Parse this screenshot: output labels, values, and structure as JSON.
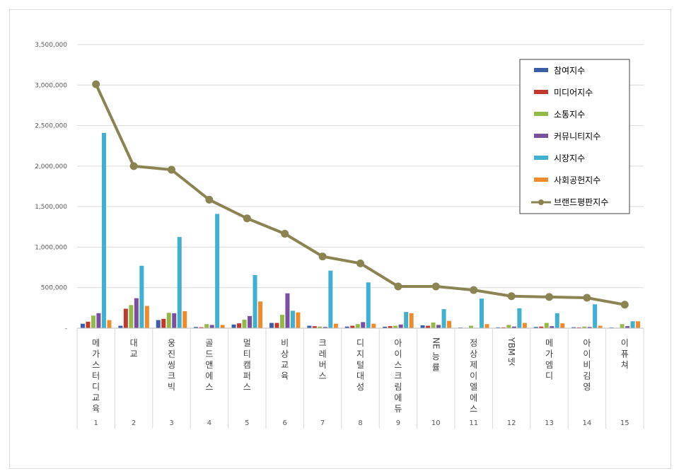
{
  "chart_data": {
    "type": "bar",
    "ylim": [
      0,
      3500000
    ],
    "yticks": [
      "3,500,000",
      "3,000,000",
      "2,500,000",
      "2,000,000",
      "1,500,000",
      "1,000,000",
      "500,000",
      "-"
    ],
    "ytick_values": [
      3500000,
      3000000,
      2500000,
      2000000,
      1500000,
      1000000,
      500000,
      0
    ],
    "grid": true,
    "legend_position": "top-right",
    "index_labels": [
      "1",
      "2",
      "3",
      "4",
      "5",
      "6",
      "7",
      "8",
      "9",
      "10",
      "11",
      "12",
      "13",
      "14",
      "15"
    ],
    "categories": [
      "메가스터디교육",
      "대교",
      "웅진씽크빅",
      "골드앤에스",
      "멀티캠퍼스",
      "비상교육",
      "크레버스",
      "디지털대성",
      "아이스크림에듀",
      "NE능률",
      "정상제이엘에스",
      "YBM넷",
      "메가엠디",
      "아이비김영",
      "이퓨쳐"
    ],
    "series": [
      {
        "name": "참여지수",
        "kind": "bar",
        "color": "#3a5fa8",
        "values": [
          55000,
          30000,
          100000,
          15000,
          45000,
          65000,
          30000,
          20000,
          18000,
          35000,
          8000,
          10000,
          15000,
          12000,
          8000
        ]
      },
      {
        "name": "미디어지수",
        "kind": "bar",
        "color": "#c0392b",
        "values": [
          80000,
          240000,
          115000,
          12000,
          60000,
          65000,
          25000,
          30000,
          25000,
          30000,
          5000,
          10000,
          20000,
          10000,
          5000
        ]
      },
      {
        "name": "소통지수",
        "kind": "bar",
        "color": "#93b949",
        "values": [
          155000,
          285000,
          190000,
          50000,
          105000,
          165000,
          20000,
          50000,
          30000,
          70000,
          30000,
          40000,
          65000,
          20000,
          50000
        ]
      },
      {
        "name": "커뮤니티지수",
        "kind": "bar",
        "color": "#7a4fa0",
        "values": [
          185000,
          370000,
          185000,
          40000,
          150000,
          430000,
          15000,
          75000,
          45000,
          40000,
          5000,
          20000,
          25000,
          15000,
          25000
        ]
      },
      {
        "name": "시장지수",
        "kind": "bar",
        "color": "#3fb0cf",
        "values": [
          2410000,
          770000,
          1125000,
          1410000,
          655000,
          215000,
          710000,
          565000,
          200000,
          235000,
          365000,
          245000,
          185000,
          295000,
          85000
        ]
      },
      {
        "name": "사회공헌지수",
        "kind": "bar",
        "color": "#f08b2c",
        "values": [
          100000,
          275000,
          210000,
          40000,
          330000,
          195000,
          55000,
          55000,
          185000,
          90000,
          50000,
          65000,
          60000,
          30000,
          85000
        ]
      },
      {
        "name": "브랜드평판지수",
        "kind": "line",
        "color": "#8b8452",
        "values": [
          3010000,
          2000000,
          1955000,
          1585000,
          1355000,
          1165000,
          885000,
          800000,
          515000,
          515000,
          470000,
          395000,
          385000,
          375000,
          290000
        ]
      }
    ]
  }
}
